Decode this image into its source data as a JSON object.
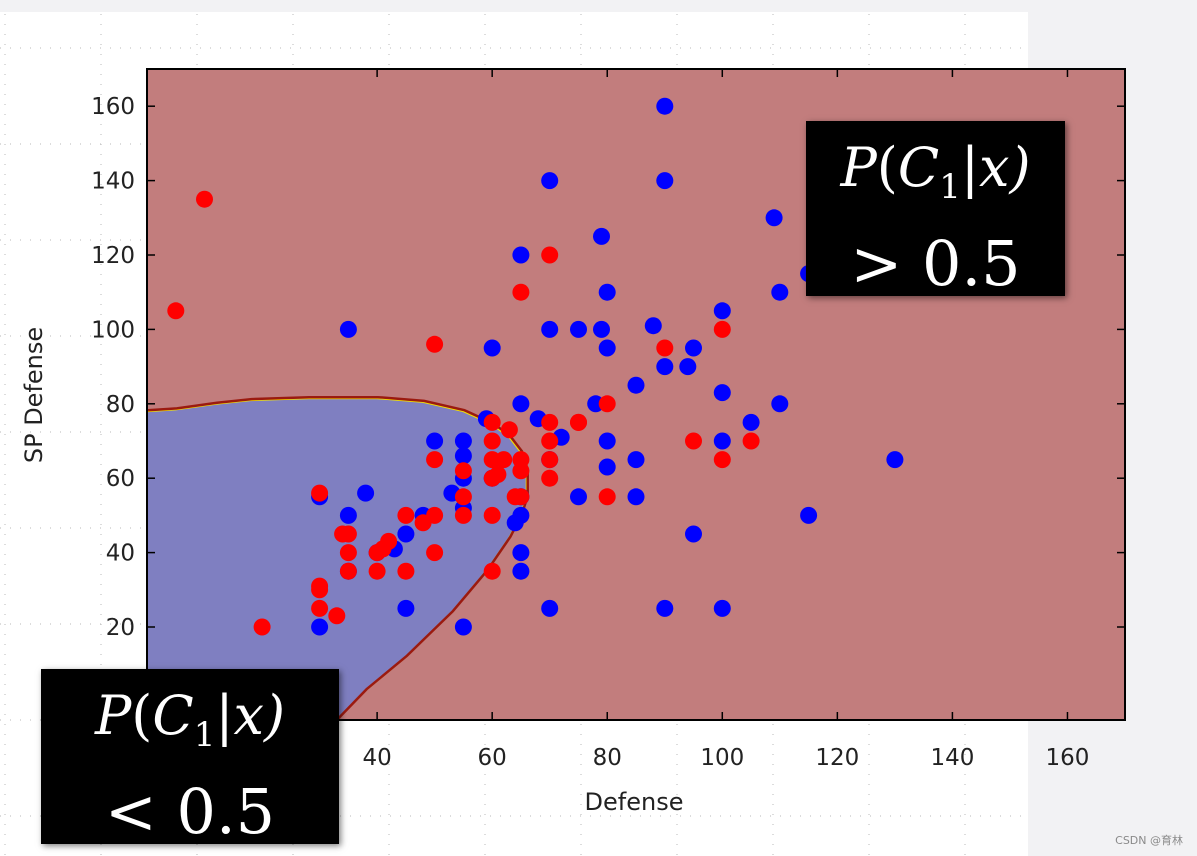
{
  "chart_data": {
    "type": "scatter",
    "xlabel": "Defense",
    "ylabel": "SP Defense",
    "xlim": [
      0,
      170
    ],
    "ylim": [
      -5,
      170
    ],
    "x_ticks": [
      40,
      60,
      80,
      100,
      120,
      140,
      160
    ],
    "y_ticks": [
      20,
      40,
      60,
      80,
      100,
      120,
      140,
      160
    ],
    "background_regions": {
      "class1_color": "#c27d7d",
      "class2_color": "#7f7fc1",
      "boundary_color": "#9b1a10"
    },
    "series": [
      {
        "color": "#0000ff",
        "points": [
          [
            90,
            160
          ],
          [
            70,
            140
          ],
          [
            90,
            140
          ],
          [
            109,
            130
          ],
          [
            79,
            125
          ],
          [
            65,
            120
          ],
          [
            115,
            115
          ],
          [
            80,
            110
          ],
          [
            110,
            110
          ],
          [
            100,
            105
          ],
          [
            35,
            100
          ],
          [
            70,
            100
          ],
          [
            75,
            100
          ],
          [
            79,
            100
          ],
          [
            88,
            101
          ],
          [
            60,
            95
          ],
          [
            80,
            95
          ],
          [
            95,
            95
          ],
          [
            90,
            90
          ],
          [
            94,
            90
          ],
          [
            85,
            85
          ],
          [
            65,
            80
          ],
          [
            78,
            80
          ],
          [
            100,
            83
          ],
          [
            110,
            80
          ],
          [
            59,
            76
          ],
          [
            68,
            76
          ],
          [
            105,
            75
          ],
          [
            72,
            71
          ],
          [
            80,
            70
          ],
          [
            100,
            70
          ],
          [
            50,
            70
          ],
          [
            55,
            70
          ],
          [
            55,
            66
          ],
          [
            70,
            65
          ],
          [
            85,
            65
          ],
          [
            80,
            63
          ],
          [
            130,
            65
          ],
          [
            55,
            60
          ],
          [
            53,
            56
          ],
          [
            30,
            55
          ],
          [
            38,
            56
          ],
          [
            75,
            55
          ],
          [
            85,
            55
          ],
          [
            65,
            55
          ],
          [
            48,
            50
          ],
          [
            35,
            50
          ],
          [
            65,
            50
          ],
          [
            115,
            50
          ],
          [
            64,
            48
          ],
          [
            45,
            45
          ],
          [
            95,
            45
          ],
          [
            43,
            41
          ],
          [
            65,
            40
          ],
          [
            40,
            40
          ],
          [
            35,
            35
          ],
          [
            65,
            35
          ],
          [
            45,
            25
          ],
          [
            70,
            25
          ],
          [
            90,
            25
          ],
          [
            100,
            25
          ],
          [
            30,
            20
          ],
          [
            55,
            20
          ],
          [
            60,
            60
          ],
          [
            55,
            52
          ]
        ]
      },
      {
        "color": "#ff0000",
        "points": [
          [
            10,
            135
          ],
          [
            5,
            105
          ],
          [
            70,
            120
          ],
          [
            65,
            110
          ],
          [
            50,
            96
          ],
          [
            90,
            95
          ],
          [
            100,
            100
          ],
          [
            80,
            80
          ],
          [
            60,
            75
          ],
          [
            70,
            75
          ],
          [
            75,
            75
          ],
          [
            63,
            73
          ],
          [
            95,
            70
          ],
          [
            105,
            70
          ],
          [
            70,
            70
          ],
          [
            60,
            70
          ],
          [
            50,
            65
          ],
          [
            60,
            65
          ],
          [
            62,
            65
          ],
          [
            65,
            65
          ],
          [
            70,
            65
          ],
          [
            100,
            65
          ],
          [
            55,
            62
          ],
          [
            65,
            62
          ],
          [
            60,
            60
          ],
          [
            70,
            60
          ],
          [
            61,
            61
          ],
          [
            55,
            55
          ],
          [
            65,
            55
          ],
          [
            80,
            55
          ],
          [
            64,
            55
          ],
          [
            30,
            56
          ],
          [
            50,
            50
          ],
          [
            55,
            50
          ],
          [
            60,
            50
          ],
          [
            45,
            50
          ],
          [
            48,
            48
          ],
          [
            34,
            45
          ],
          [
            35,
            45
          ],
          [
            42,
            43
          ],
          [
            41,
            41
          ],
          [
            40,
            40
          ],
          [
            35,
            40
          ],
          [
            50,
            40
          ],
          [
            35,
            35
          ],
          [
            40,
            35
          ],
          [
            45,
            35
          ],
          [
            60,
            35
          ],
          [
            30,
            31
          ],
          [
            30,
            30
          ],
          [
            20,
            20
          ],
          [
            30,
            25
          ],
          [
            33,
            23
          ],
          [
            75,
            75
          ]
        ]
      }
    ]
  },
  "annotations": {
    "high": {
      "line1_prefix": "P",
      "line1_body": "(C",
      "line1_sub": "1",
      "line1_rest": "|x)",
      "line2": "> 0.5"
    },
    "low": {
      "line1_prefix": "P",
      "line1_body": "(C",
      "line1_sub": "1",
      "line1_rest": "|x)",
      "line2": "< 0.5"
    }
  },
  "watermark": "CSDN @育林"
}
